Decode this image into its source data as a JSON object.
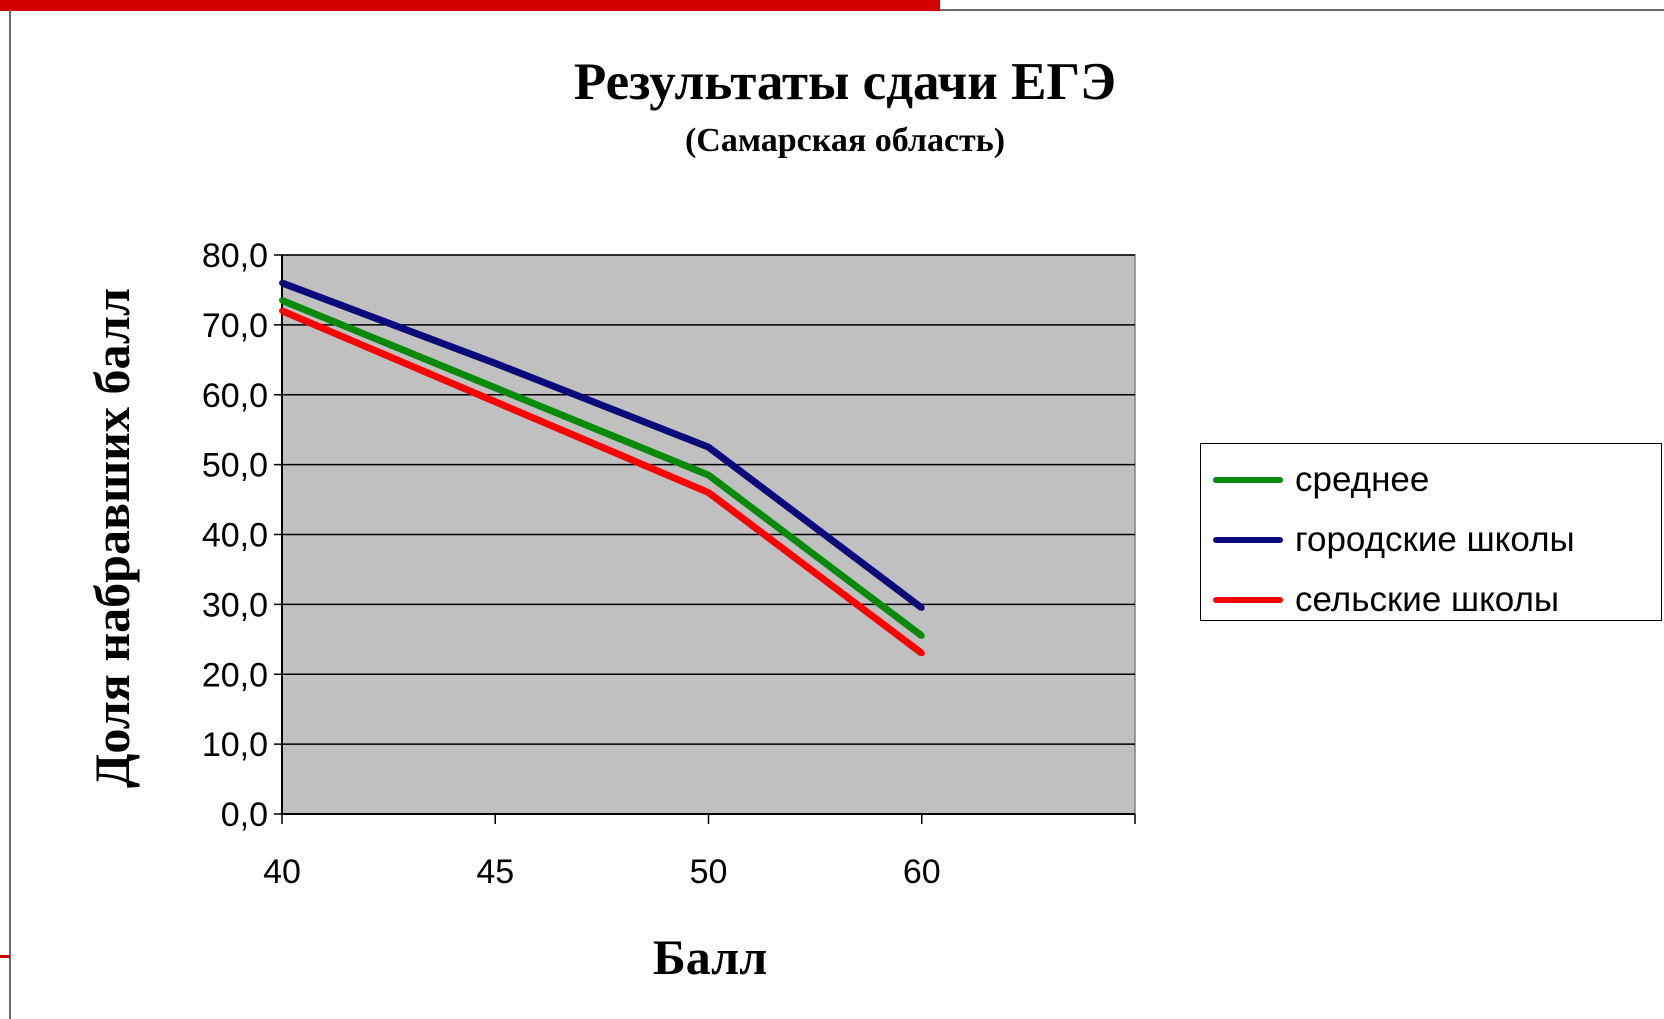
{
  "colors": {
    "accent": "#d40000",
    "plot_background": "#c0c0c0",
    "series": [
      "#0a8a0a",
      "#0a0a7a",
      "#ff0000"
    ]
  },
  "chart_data": {
    "type": "line",
    "title": "Результаты сдачи ЕГЭ",
    "subtitle": "(Самарская область)",
    "xlabel": "Балл",
    "ylabel": "Доля набравших балл",
    "categories": [
      "40",
      "45",
      "50",
      "60"
    ],
    "y_ticks": [
      "0,0",
      "10,0",
      "20,0",
      "30,0",
      "40,0",
      "50,0",
      "60,0",
      "70,0",
      "80,0"
    ],
    "ylim": [
      0,
      80
    ],
    "grid": true,
    "legend_position": "right",
    "series": [
      {
        "name": "среднее",
        "values": [
          73.5,
          61.0,
          48.5,
          25.5
        ]
      },
      {
        "name": "городские школы",
        "values": [
          76.0,
          64.5,
          52.5,
          29.5
        ]
      },
      {
        "name": "сельские школы",
        "values": [
          72.0,
          59.0,
          46.0,
          23.0
        ]
      }
    ]
  }
}
